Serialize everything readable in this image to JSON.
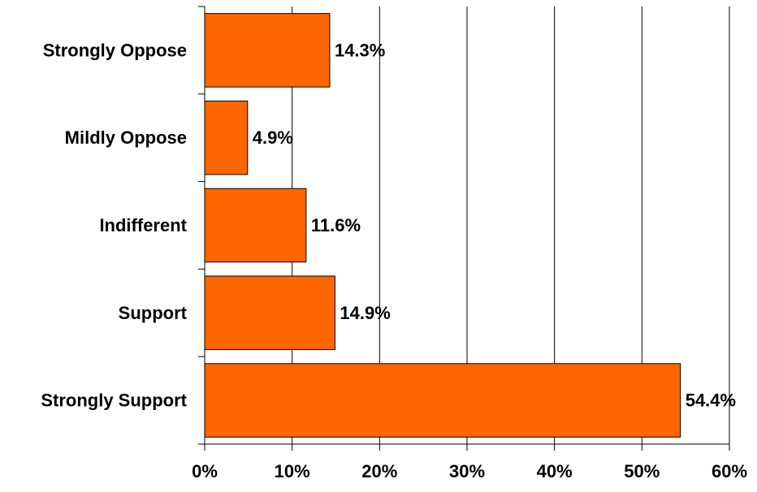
{
  "chart_data": {
    "type": "bar",
    "orientation": "horizontal",
    "categories": [
      "Strongly Oppose",
      "Mildly Oppose",
      "Indifferent",
      "Support",
      "Strongly Support"
    ],
    "values": [
      14.3,
      4.9,
      11.6,
      14.9,
      54.4
    ],
    "value_labels": [
      "14.3%",
      "4.9%",
      "11.6%",
      "14.9%",
      "54.4%"
    ],
    "title": "",
    "xlabel": "",
    "ylabel": "",
    "xlim": [
      0,
      60
    ],
    "x_ticks": [
      0,
      10,
      20,
      30,
      40,
      50,
      60
    ],
    "x_tick_labels": [
      "0%",
      "10%",
      "20%",
      "30%",
      "40%",
      "50%",
      "60%"
    ],
    "grid": "vertical",
    "legend": "none",
    "colors": {
      "bar_fill": "#FF6600",
      "bar_stroke": "#000000",
      "grid": "#000000",
      "background": "#FFFFFF"
    }
  }
}
